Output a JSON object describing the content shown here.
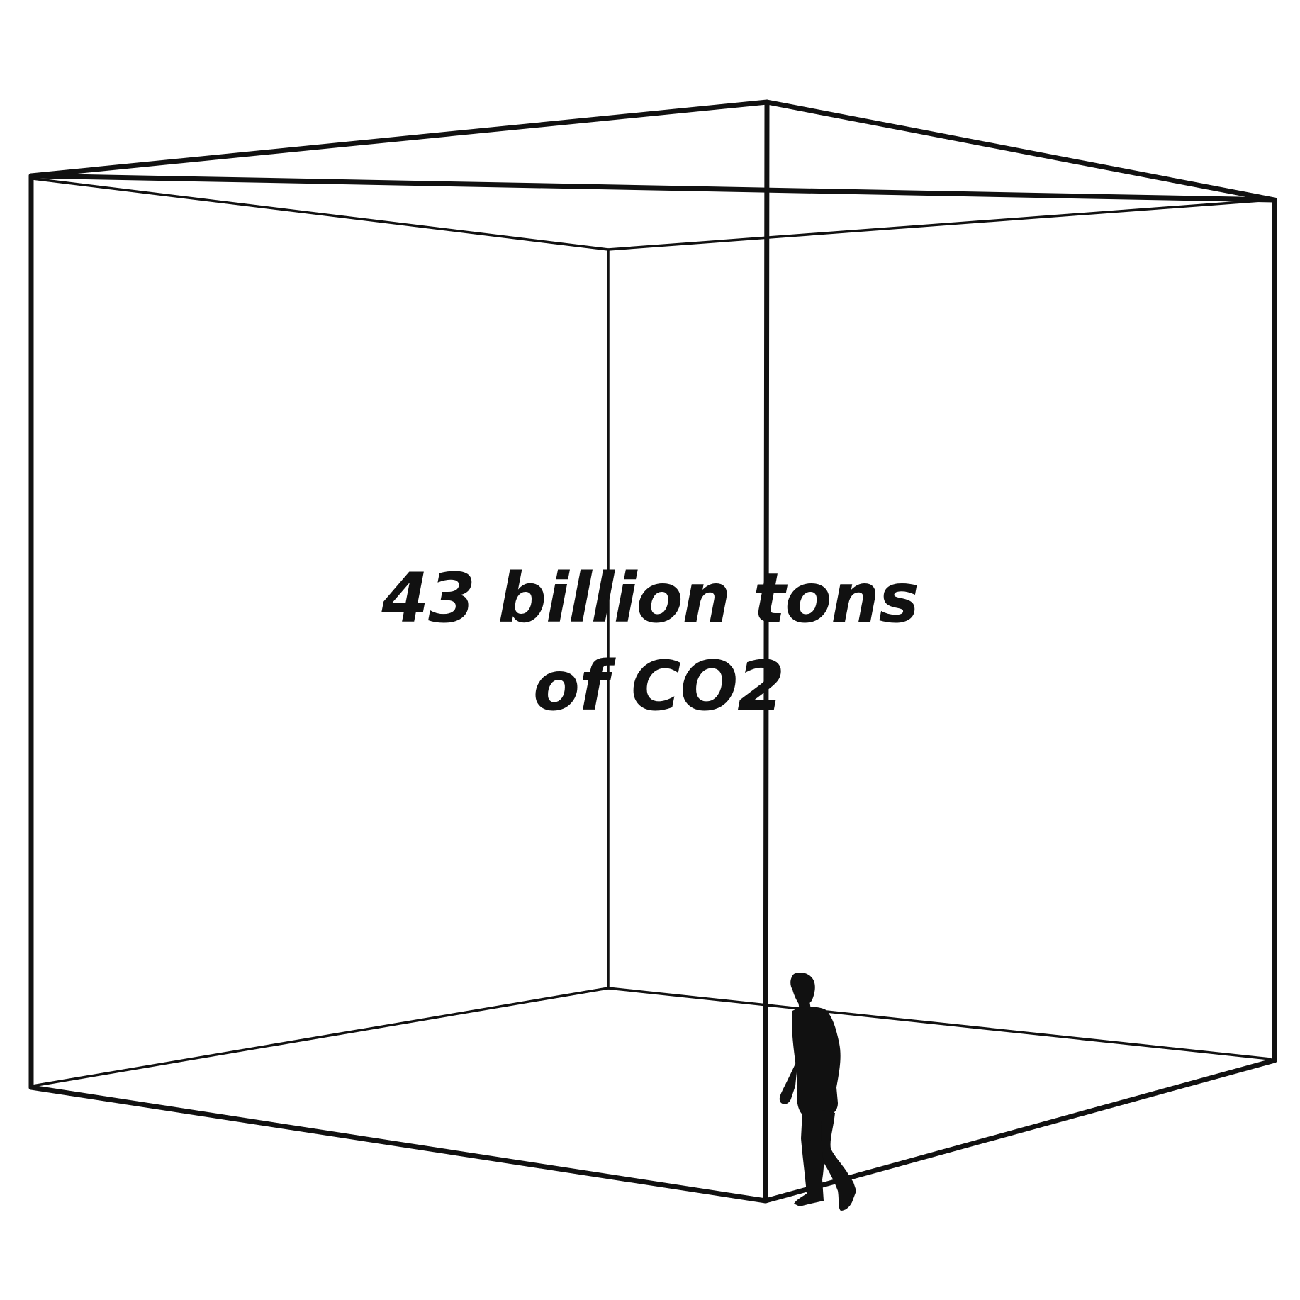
{
  "headline": {
    "line1": "43 billion tons",
    "line2": "of CO2"
  },
  "icons": {
    "figure": "person-silhouette-icon"
  },
  "colors": {
    "ink": "#111111",
    "background": "#ffffff"
  }
}
